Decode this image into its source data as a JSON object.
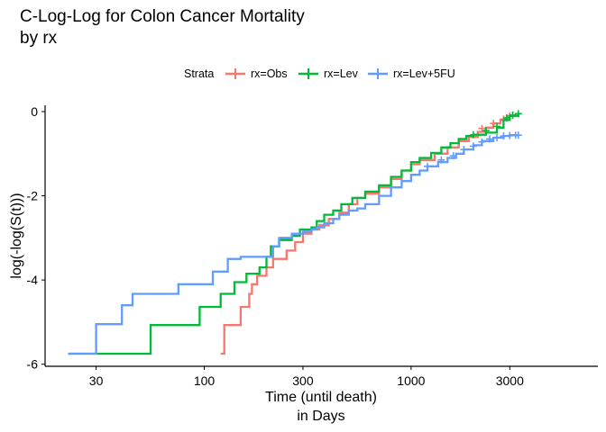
{
  "chart_data": {
    "type": "line",
    "title": [
      "C-Log-Log for Colon Cancer Mortality",
      "by rx"
    ],
    "xlabel": [
      "Time (until death)",
      "in Days"
    ],
    "ylabel": "log(-log(S(t)))",
    "x_scale": "log",
    "xlim": [
      17,
      8000
    ],
    "ylim": [
      -6.05,
      0.15
    ],
    "x_ticks": [
      30,
      100,
      300,
      1000,
      3000
    ],
    "x_tick_labels": [
      "30",
      "100",
      "300",
      "1000",
      "3000"
    ],
    "y_ticks": [
      0,
      -2,
      -4,
      -6
    ],
    "y_tick_labels": [
      "0",
      "-2",
      "-4",
      "-6"
    ],
    "grid": false,
    "legend": {
      "title": "Strata",
      "position": "top",
      "entries": [
        "rx=Obs",
        "rx=Lev",
        "rx=Lev+5FU"
      ]
    },
    "series": [
      {
        "name": "rx=Obs",
        "color": "#F8766D",
        "steps": [
          [
            120,
            -5.75
          ],
          [
            125,
            -5.07
          ],
          [
            150,
            -4.64
          ],
          [
            165,
            -4.33
          ],
          [
            170,
            -4.1
          ],
          [
            180,
            -3.9
          ],
          [
            200,
            -3.7
          ],
          [
            215,
            -3.5
          ],
          [
            250,
            -3.3
          ],
          [
            275,
            -3.1
          ],
          [
            300,
            -2.9
          ],
          [
            330,
            -2.8
          ],
          [
            360,
            -2.7
          ],
          [
            400,
            -2.55
          ],
          [
            450,
            -2.4
          ],
          [
            500,
            -2.2
          ],
          [
            550,
            -2.05
          ],
          [
            600,
            -1.95
          ],
          [
            700,
            -1.8
          ],
          [
            800,
            -1.6
          ],
          [
            900,
            -1.4
          ],
          [
            1000,
            -1.25
          ],
          [
            1100,
            -1.15
          ],
          [
            1300,
            -1.0
          ],
          [
            1500,
            -0.85
          ],
          [
            1700,
            -0.7
          ],
          [
            1900,
            -0.6
          ],
          [
            2100,
            -0.48
          ],
          [
            2300,
            -0.38
          ],
          [
            2500,
            -0.28
          ],
          [
            2700,
            -0.2
          ],
          [
            2900,
            -0.12
          ],
          [
            3000,
            -0.1
          ],
          [
            3200,
            -0.08
          ]
        ],
        "censor": [
          [
            2200,
            -0.4
          ],
          [
            2500,
            -0.28
          ],
          [
            2800,
            -0.18
          ],
          [
            3000,
            -0.1
          ],
          [
            3100,
            -0.09
          ]
        ]
      },
      {
        "name": "rx=Lev",
        "color": "#00BA38",
        "steps": [
          [
            22,
            -5.75
          ],
          [
            55,
            -5.07
          ],
          [
            95,
            -4.64
          ],
          [
            120,
            -4.33
          ],
          [
            140,
            -4.05
          ],
          [
            160,
            -3.85
          ],
          [
            185,
            -3.7
          ],
          [
            200,
            -3.45
          ],
          [
            210,
            -3.2
          ],
          [
            230,
            -3.05
          ],
          [
            265,
            -2.95
          ],
          [
            290,
            -2.8
          ],
          [
            330,
            -2.75
          ],
          [
            350,
            -2.6
          ],
          [
            380,
            -2.45
          ],
          [
            420,
            -2.35
          ],
          [
            460,
            -2.2
          ],
          [
            520,
            -2.05
          ],
          [
            600,
            -1.9
          ],
          [
            700,
            -1.75
          ],
          [
            800,
            -1.55
          ],
          [
            900,
            -1.4
          ],
          [
            1000,
            -1.2
          ],
          [
            1100,
            -1.1
          ],
          [
            1250,
            -0.98
          ],
          [
            1400,
            -0.85
          ],
          [
            1550,
            -0.75
          ],
          [
            1700,
            -0.65
          ],
          [
            1850,
            -0.58
          ],
          [
            2000,
            -0.55
          ],
          [
            2300,
            -0.5
          ],
          [
            2600,
            -0.38
          ],
          [
            2800,
            -0.2
          ],
          [
            3000,
            -0.1
          ],
          [
            3300,
            -0.05
          ]
        ],
        "censor": [
          [
            2000,
            -0.55
          ],
          [
            2300,
            -0.45
          ],
          [
            2600,
            -0.35
          ],
          [
            2900,
            -0.15
          ],
          [
            3100,
            -0.08
          ],
          [
            3300,
            -0.05
          ]
        ]
      },
      {
        "name": "rx=Lev+5FU",
        "color": "#619CFF",
        "steps": [
          [
            22,
            -5.75
          ],
          [
            30,
            -5.05
          ],
          [
            40,
            -4.6
          ],
          [
            45,
            -4.33
          ],
          [
            75,
            -4.1
          ],
          [
            110,
            -3.8
          ],
          [
            130,
            -3.5
          ],
          [
            150,
            -3.45
          ],
          [
            215,
            -3.2
          ],
          [
            230,
            -3.0
          ],
          [
            265,
            -2.9
          ],
          [
            300,
            -2.85
          ],
          [
            330,
            -2.8
          ],
          [
            350,
            -2.75
          ],
          [
            380,
            -2.65
          ],
          [
            420,
            -2.55
          ],
          [
            450,
            -2.45
          ],
          [
            500,
            -2.35
          ],
          [
            550,
            -2.3
          ],
          [
            600,
            -2.2
          ],
          [
            700,
            -2.0
          ],
          [
            800,
            -1.8
          ],
          [
            900,
            -1.65
          ],
          [
            1000,
            -1.5
          ],
          [
            1100,
            -1.4
          ],
          [
            1200,
            -1.3
          ],
          [
            1350,
            -1.2
          ],
          [
            1500,
            -1.1
          ],
          [
            1650,
            -1.0
          ],
          [
            1800,
            -0.9
          ],
          [
            2000,
            -0.8
          ],
          [
            2200,
            -0.7
          ],
          [
            2500,
            -0.62
          ],
          [
            2800,
            -0.58
          ],
          [
            3000,
            -0.56
          ],
          [
            3300,
            -0.56
          ]
        ],
        "censor": [
          [
            1200,
            -1.3
          ],
          [
            1400,
            -1.15
          ],
          [
            1600,
            -1.05
          ],
          [
            1800,
            -0.9
          ],
          [
            2000,
            -0.82
          ],
          [
            2200,
            -0.72
          ],
          [
            2400,
            -0.65
          ],
          [
            2600,
            -0.62
          ],
          [
            2800,
            -0.58
          ],
          [
            3000,
            -0.57
          ],
          [
            3200,
            -0.56
          ],
          [
            3300,
            -0.56
          ]
        ]
      }
    ]
  }
}
